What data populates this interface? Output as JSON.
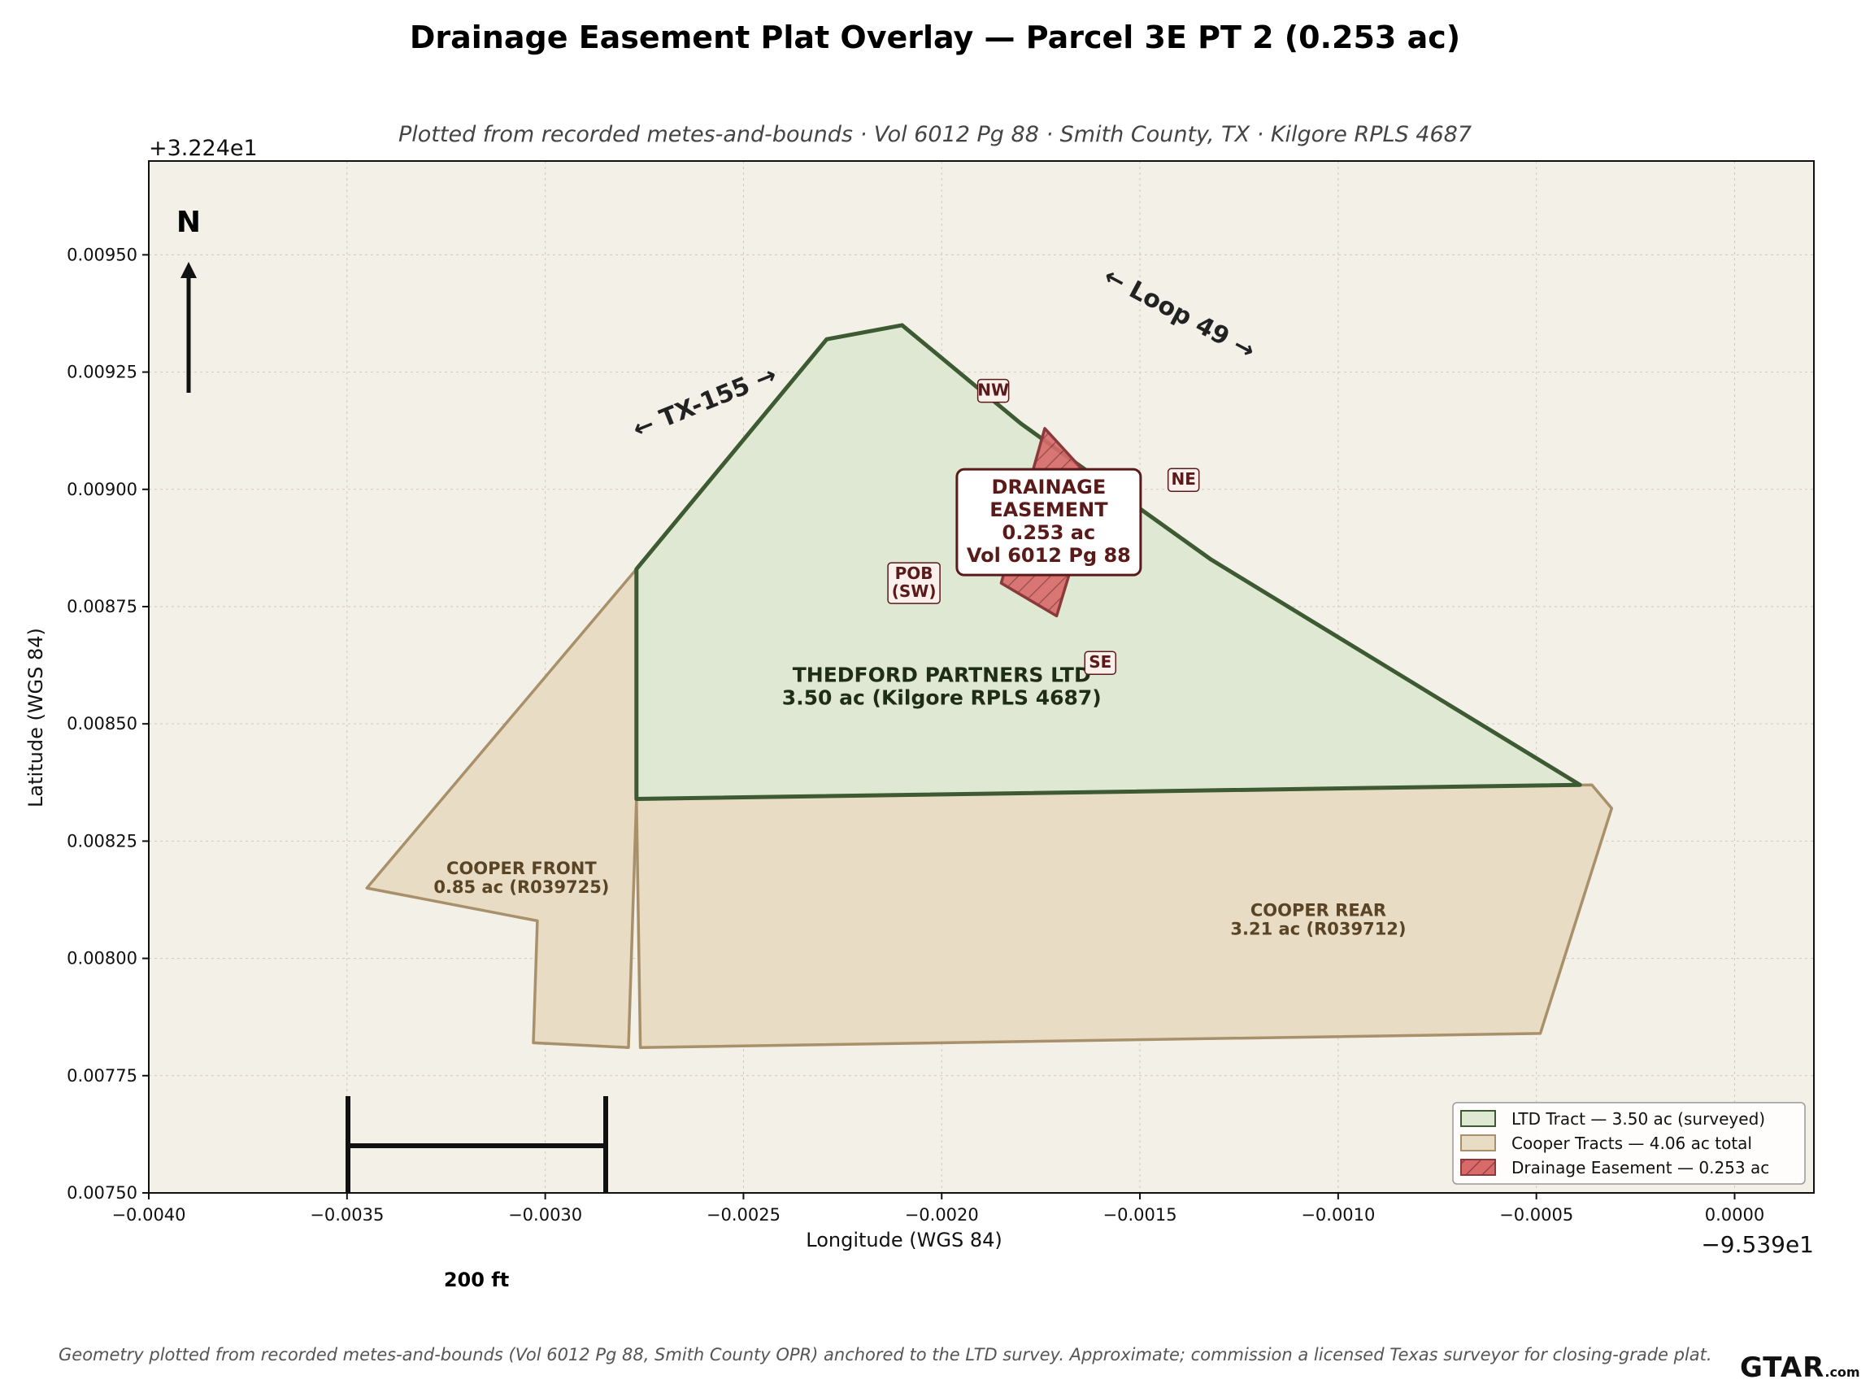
{
  "title": "Drainage Easement Plat Overlay — Parcel 3E PT 2 (0.253 ac)",
  "subtitle": "Plotted from recorded metes-and-bounds · Vol 6012 Pg 88 · Smith County, TX · Kilgore RPLS 4687",
  "footnote": "Geometry plotted from recorded metes-and-bounds (Vol 6012 Pg 88, Smith County OPR) anchored to the LTD survey. Approximate; commission a licensed Texas surveyor for closing-grade plat.",
  "watermark": {
    "main": "GTAR",
    "suffix": ".com"
  },
  "north_arrow": {
    "label": "N"
  },
  "scale_bar": {
    "label": "200 ft"
  },
  "colors": {
    "background": "#f3f0e8",
    "ltd_fill": "#dfe8d2",
    "ltd_stroke": "#3d5a32",
    "cooper_fill": "#e8dcc4",
    "cooper_stroke": "#a8906b",
    "easement_fill": "#d86a6a",
    "easement_stroke": "#8a3a3a",
    "label_dark_red": "#5a1a1a"
  },
  "chart_data": {
    "type": "map",
    "xlabel": "Longitude (WGS 84)",
    "ylabel": "Latitude (WGS 84)",
    "x_offset_text": "−9.539e1",
    "y_offset_text": "+3.224e1",
    "xlim": [
      -0.004,
      0.0002
    ],
    "ylim": [
      0.0075,
      0.0097
    ],
    "x_ticks": [
      -0.004,
      -0.0035,
      -0.003,
      -0.0025,
      -0.002,
      -0.0015,
      -0.001,
      -0.0005,
      0.0
    ],
    "x_tick_labels": [
      "−0.0040",
      "−0.0035",
      "−0.0030",
      "−0.0025",
      "−0.0020",
      "−0.0015",
      "−0.0010",
      "−0.0005",
      "0.0000"
    ],
    "y_ticks": [
      0.0075,
      0.00775,
      0.008,
      0.00825,
      0.0085,
      0.00875,
      0.009,
      0.00925,
      0.0095
    ],
    "y_tick_labels": [
      "0.00750",
      "0.00775",
      "0.00800",
      "0.00825",
      "0.00850",
      "0.00875",
      "0.00900",
      "0.00925",
      "0.00950"
    ],
    "grid": true,
    "legend_position": "bottom-right",
    "parcels": [
      {
        "id": "cooper-front",
        "kind": "cooper",
        "label_lines": [
          "COOPER FRONT",
          "0.85 ac (R039725)"
        ],
        "label_at": [
          -0.00306,
          0.00818
        ],
        "coords": [
          [
            -0.00277,
            0.00883
          ],
          [
            -0.00345,
            0.00815
          ],
          [
            -0.00302,
            0.00808
          ],
          [
            -0.00303,
            0.00782
          ],
          [
            -0.00279,
            0.00781
          ],
          [
            -0.00277,
            0.00834
          ]
        ]
      },
      {
        "id": "cooper-rear",
        "kind": "cooper",
        "label_lines": [
          "COOPER REAR",
          "3.21 ac (R039712)"
        ],
        "label_at": [
          -0.00105,
          0.00809
        ],
        "coords": [
          [
            -0.00277,
            0.00834
          ],
          [
            -0.00036,
            0.00837
          ],
          [
            -0.00031,
            0.00832
          ],
          [
            -0.00049,
            0.00784
          ],
          [
            -0.00276,
            0.00781
          ]
        ]
      },
      {
        "id": "ltd-tract",
        "kind": "ltd",
        "label_lines": [
          "THEDFORD PARTNERS LTD",
          "3.50 ac (Kilgore RPLS 4687)"
        ],
        "label_at": [
          -0.002,
          0.00859
        ],
        "coords": [
          [
            -0.00277,
            0.00883
          ],
          [
            -0.00229,
            0.00932
          ],
          [
            -0.0021,
            0.00935
          ],
          [
            -0.0018,
            0.00914
          ],
          [
            -0.00132,
            0.00885
          ],
          [
            -0.00039,
            0.00837
          ],
          [
            -0.00277,
            0.00834
          ]
        ]
      }
    ],
    "easement": {
      "label_lines": [
        "DRAINAGE",
        "EASEMENT",
        "0.253 ac",
        "Vol 6012 Pg 88"
      ],
      "label_at": [
        -0.00173,
        0.00893
      ],
      "coords": [
        [
          -0.00174,
          0.00913
        ],
        [
          -0.00161,
          0.00901
        ],
        [
          -0.00171,
          0.00873
        ],
        [
          -0.00185,
          0.0088
        ]
      ],
      "corners": [
        {
          "label": "NW",
          "at": [
            -0.00187,
            0.00921
          ]
        },
        {
          "label": "NE",
          "at": [
            -0.00139,
            0.00902
          ]
        },
        {
          "label": "SE",
          "at": [
            -0.0016,
            0.00863
          ]
        },
        {
          "label": "POB\n(SW)",
          "at": [
            -0.00207,
            0.0088
          ]
        }
      ]
    },
    "road_labels": [
      {
        "text": "← TX-155 →",
        "at": [
          -0.00259,
          0.00917
        ],
        "rotation": -22
      },
      {
        "text": "← Loop 49 →",
        "at": [
          -0.00141,
          0.00936
        ],
        "rotation": 28
      }
    ],
    "legend": [
      {
        "label": "LTD Tract — 3.50 ac (surveyed)",
        "kind": "ltd"
      },
      {
        "label": "Cooper Tracts — 4.06 ac total",
        "kind": "cooper"
      },
      {
        "label": "Drainage Easement — 0.253 ac",
        "kind": "easement"
      }
    ]
  }
}
